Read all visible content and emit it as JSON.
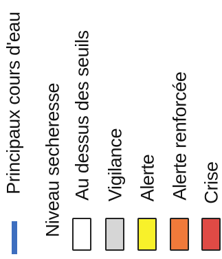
{
  "legend": {
    "river": {
      "label": "Principaux cours d'eau",
      "color": "#3d6ebf"
    },
    "drought_heading": "Niveau secheresse",
    "items": [
      {
        "label": "Au dessus des seuils",
        "color": "#ffffff"
      },
      {
        "label": "Vigilance",
        "color": "#d6d6d6"
      },
      {
        "label": "Alerte",
        "color": "#f8f12a"
      },
      {
        "label": "Alerte renforcée",
        "color": "#f07a3a"
      },
      {
        "label": "Crise",
        "color": "#e04a45"
      }
    ]
  }
}
